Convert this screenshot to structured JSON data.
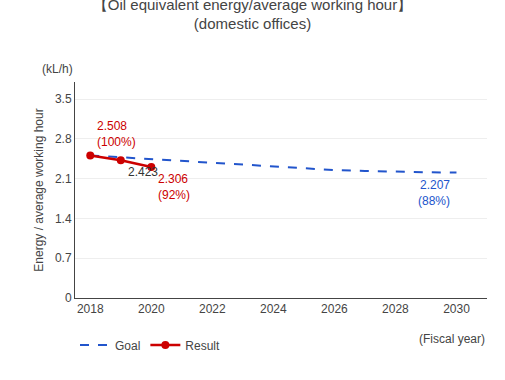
{
  "chart_data": {
    "type": "line",
    "title": "【Oil equivalent energy/average working hour】",
    "subtitle": "(domestic offices)",
    "ylabel": "Energy / average working hour",
    "yunit": "(kL/h)",
    "xlabel": "(Fiscal year)",
    "series": [
      {
        "name": "Goal",
        "color": "#2255cc",
        "line_style": "dashed",
        "x": [
          2018,
          2019,
          2020,
          2021,
          2022,
          2023,
          2024,
          2025,
          2026,
          2027,
          2028,
          2029,
          2030
        ],
        "values": [
          2.508,
          2.475,
          2.443,
          2.411,
          2.379,
          2.347,
          2.315,
          2.283,
          2.251,
          2.235,
          2.219,
          2.213,
          2.207
        ]
      },
      {
        "name": "Result",
        "color": "#cc0000",
        "line_style": "solid",
        "marker": "circle",
        "x": [
          2018,
          2019,
          2020
        ],
        "values": [
          2.508,
          2.423,
          2.306
        ]
      }
    ],
    "annotations": [
      {
        "x": 2018,
        "y": 2.508,
        "text": "2.508\n(100%)",
        "color": "#cc0000"
      },
      {
        "x": 2019,
        "y": 2.423,
        "text": "2.423",
        "color": "#333333"
      },
      {
        "x": 2020,
        "y": 2.306,
        "text": "2.306\n(92%)",
        "color": "#cc0000"
      },
      {
        "x": 2030,
        "y": 2.207,
        "text": "2.207\n(88%)",
        "color": "#2255cc"
      }
    ],
    "xlim": [
      2017.5,
      2031
    ],
    "xticks": [
      2018,
      2020,
      2022,
      2024,
      2026,
      2028,
      2030
    ],
    "ylim": [
      0,
      3.8
    ],
    "yticks": [
      0,
      0.7,
      1.4,
      2.1,
      2.8,
      3.5
    ],
    "grid": "y",
    "legend": "bottom left"
  }
}
